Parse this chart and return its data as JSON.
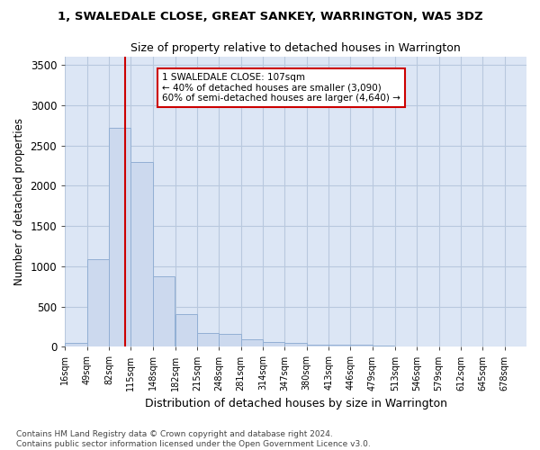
{
  "title": "1, SWALEDALE CLOSE, GREAT SANKEY, WARRINGTON, WA5 3DZ",
  "subtitle": "Size of property relative to detached houses in Warrington",
  "xlabel": "Distribution of detached houses by size in Warrington",
  "ylabel": "Number of detached properties",
  "bar_color": "#ccd9ee",
  "bar_edge_color": "#92afd4",
  "grid_color": "#b8c8de",
  "bg_color": "#dce6f5",
  "property_size": 107,
  "property_line_color": "#cc0000",
  "annotation_text": "1 SWALEDALE CLOSE: 107sqm\n← 40% of detached houses are smaller (3,090)\n60% of semi-detached houses are larger (4,640) →",
  "annotation_box_color": "#cc0000",
  "footer_text": "Contains HM Land Registry data © Crown copyright and database right 2024.\nContains public sector information licensed under the Open Government Licence v3.0.",
  "bin_labels": [
    "16sqm",
    "49sqm",
    "82sqm",
    "115sqm",
    "148sqm",
    "182sqm",
    "215sqm",
    "248sqm",
    "281sqm",
    "314sqm",
    "347sqm",
    "380sqm",
    "413sqm",
    "446sqm",
    "479sqm",
    "513sqm",
    "546sqm",
    "579sqm",
    "612sqm",
    "645sqm",
    "678sqm"
  ],
  "bin_values": [
    50,
    1090,
    2720,
    2290,
    880,
    410,
    170,
    160,
    90,
    60,
    50,
    30,
    25,
    20,
    10,
    5,
    3,
    2,
    1,
    1,
    0
  ],
  "bin_edges": [
    16,
    49,
    82,
    115,
    148,
    182,
    215,
    248,
    281,
    314,
    347,
    380,
    413,
    446,
    479,
    513,
    546,
    579,
    612,
    645,
    678,
    711
  ],
  "ylim": [
    0,
    3600
  ],
  "yticks": [
    0,
    500,
    1000,
    1500,
    2000,
    2500,
    3000,
    3500
  ],
  "title_fontsize": 9.5,
  "subtitle_fontsize": 9,
  "footer_fontsize": 6.5
}
